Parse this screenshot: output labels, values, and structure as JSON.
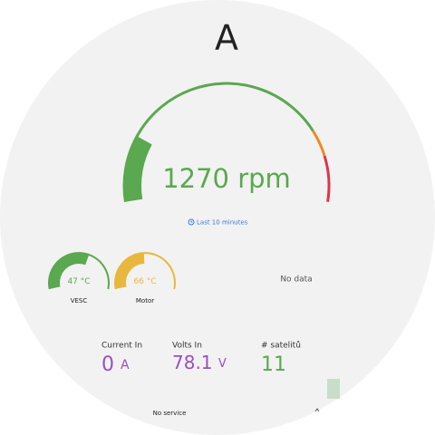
{
  "header": {
    "title": "A"
  },
  "rpm_gauge": {
    "value": 1270,
    "unit": "rpm",
    "range_label": "Last 10 minutes"
  },
  "temperatures": [
    {
      "name": "VESC",
      "value": 47,
      "unit": "°C"
    },
    {
      "name": "Motor",
      "value": 66,
      "unit": "°C"
    }
  ],
  "no_data": "No data",
  "stats": [
    {
      "label": "Current In",
      "value": 0,
      "unit": "A"
    },
    {
      "label": "Volts In",
      "value": 78.1,
      "unit": "V"
    },
    {
      "label": "# satelitů",
      "value": 11
    }
  ],
  "status": "No service"
}
